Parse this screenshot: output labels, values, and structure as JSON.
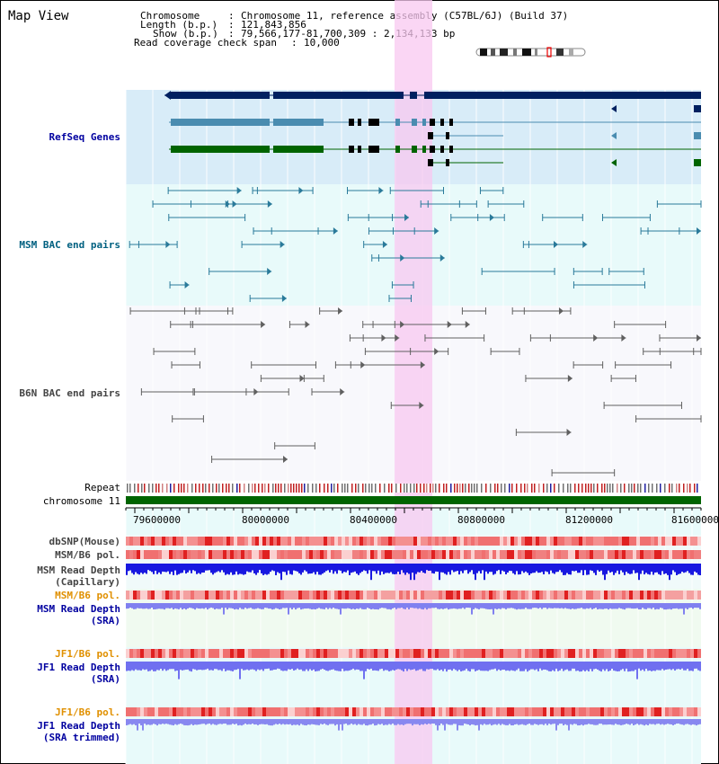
{
  "view_title": "Map View",
  "header": {
    "chromosome_label": "Chromosome",
    "chromosome_value": "Chromosome 11, reference assembly (C57BL/6J) (Build 37)",
    "length_label": "Length (b.p.)",
    "length_value": "121,843,856",
    "show_label": "Show (b.p.)",
    "show_value": "79,566,177-81,700,309 : 2,134,133 bp",
    "span_label": "Read coverage check span",
    "span_value": "10,000"
  },
  "tracks": {
    "refseq": "RefSeq Genes",
    "msm_bac": "MSM BAC end pairs",
    "b6n_bac": "B6N BAC end pairs",
    "repeat": "Repeat",
    "chromosome": "chromosome 11",
    "dbsnp": "dbSNP(Mouse)",
    "msm_b6_pol_1": "MSM/B6 pol.",
    "msm_depth_cap_1": "MSM Read Depth",
    "msm_depth_cap_2": "(Capillary)",
    "msm_b6_pol_2": "MSM/B6 pol.",
    "msm_depth_sra_1": "MSM Read Depth",
    "msm_depth_sra_2": "(SRA)",
    "jf1_b6_pol_1": "JF1/B6 pol.",
    "jf1_depth_sra_1": "JF1 Read Depth",
    "jf1_depth_sra_2": "(SRA)",
    "jf1_b6_pol_2": "JF1/B6 pol.",
    "jf1_depth_trim_1": "JF1 Read Depth",
    "jf1_depth_trim_2": "(SRA trimmed)"
  },
  "axis_ticks": [
    "79600000",
    "80000000",
    "80400000",
    "80800000",
    "81200000",
    "81600000"
  ],
  "colors": {
    "highlight": "#f8d0f0",
    "refseq_bg": "#d8ecf8",
    "gene_dark": "#002060",
    "gene_mid": "#4a8cb0",
    "gene_green": "#006400",
    "msm_bac": "#2a7a9a",
    "b6n_bac": "#606060",
    "snp": "#e83030",
    "depth_blue": "#1a1ae0",
    "depth_light": "#7070f0",
    "chrom_bar": "#006400"
  }
}
